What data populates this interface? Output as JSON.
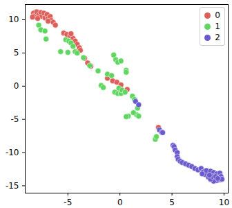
{
  "chart_data": {
    "type": "scatter",
    "xlim": [
      -9.1,
      10.4
    ],
    "ylim": [
      -16.1,
      12.3
    ],
    "xticks": [
      -5,
      0,
      5,
      10
    ],
    "yticks": [
      -15,
      -10,
      -5,
      0,
      5,
      10
    ],
    "legend": "upper right",
    "grid": false,
    "series": [
      {
        "name": "0",
        "color": "#dd5f5a",
        "x": [
          -8.3,
          -8.2,
          -8.0,
          -7.8,
          -7.6,
          -7.5,
          -7.3,
          -7.2,
          -7.0,
          -6.9,
          -6.7,
          -6.6,
          -6.4,
          -6.2,
          -8.4,
          -7.9,
          -6.9,
          -5.4,
          -5.1,
          -4.8,
          -4.5,
          -4.3,
          -4.1,
          -3.9,
          -3.8,
          -4.7,
          -3.4,
          -3.1,
          -2.8,
          -1.2,
          -0.7,
          -0.3,
          0.1,
          0.7,
          3.7
        ],
        "y": [
          11.0,
          10.6,
          11.2,
          10.7,
          11.1,
          10.5,
          11.0,
          10.3,
          10.8,
          10.2,
          10.5,
          9.9,
          9.6,
          9.2,
          10.4,
          10.2,
          9.8,
          8.0,
          7.8,
          7.6,
          7.2,
          6.8,
          6.3,
          5.8,
          5.4,
          7.9,
          4.2,
          3.5,
          3.0,
          1.2,
          0.8,
          0.6,
          0.2,
          -0.5,
          -6.2
        ]
      },
      {
        "name": "1",
        "color": "#5fd65f",
        "x": [
          -7.8,
          -7.6,
          -7.2,
          -7.1,
          -5.7,
          -5.2,
          -4.9,
          -4.7,
          -4.5,
          -5.0,
          -4.3,
          -4.1,
          -3.5,
          -2.9,
          -2.1,
          -1.8,
          -1.6,
          -1.2,
          -0.8,
          -0.6,
          -0.4,
          -0.2,
          0.1,
          0.6,
          0.6,
          -0.5,
          -0.2,
          0.1,
          -0.1,
          0.2,
          0.5,
          0.8,
          0.6,
          1.2,
          1.4,
          1.7,
          1.6,
          1.3,
          1.8,
          3.4,
          3.5
        ],
        "y": [
          9.2,
          8.5,
          8.3,
          7.1,
          5.2,
          7.0,
          6.8,
          6.5,
          6.0,
          5.1,
          5.2,
          5.0,
          4.3,
          3.1,
          2.3,
          0.1,
          -0.2,
          1.8,
          1.6,
          4.7,
          4.0,
          3.6,
          3.8,
          2.4,
          2.1,
          -0.9,
          -1.1,
          -1.1,
          -0.3,
          -0.6,
          -0.9,
          -4.5,
          -4.6,
          -1.5,
          -2.0,
          -3.3,
          -4.3,
          -4.0,
          -4.5,
          -8.0,
          -7.6
        ]
      },
      {
        "name": "2",
        "color": "#6a5acd",
        "x": [
          1.5,
          1.8,
          3.8,
          4.0,
          4.1,
          5.1,
          5.2,
          5.3,
          5.5,
          5.5,
          5.6,
          5.8,
          6.0,
          6.3,
          6.6,
          6.9,
          7.2,
          7.5,
          7.8,
          8.0,
          8.2,
          8.5,
          8.3,
          8.7,
          9.0,
          9.3,
          9.6,
          9.7,
          9.6,
          9.3,
          9.0,
          8.7,
          8.9,
          9.2,
          8.6,
          9.8,
          7.9,
          9.4
        ],
        "y": [
          -2.3,
          -2.8,
          -6.6,
          -6.9,
          -7.0,
          -8.9,
          -9.1,
          -9.6,
          -10.0,
          -10.6,
          -11.0,
          -11.3,
          -11.5,
          -11.7,
          -11.9,
          -12.1,
          -12.4,
          -12.6,
          -12.4,
          -12.9,
          -13.3,
          -13.7,
          -12.7,
          -12.8,
          -13.0,
          -13.2,
          -13.1,
          -13.6,
          -14.1,
          -14.2,
          -14.3,
          -14.0,
          -13.6,
          -13.6,
          -13.4,
          -14.0,
          -13.2,
          -13.9
        ]
      }
    ]
  }
}
